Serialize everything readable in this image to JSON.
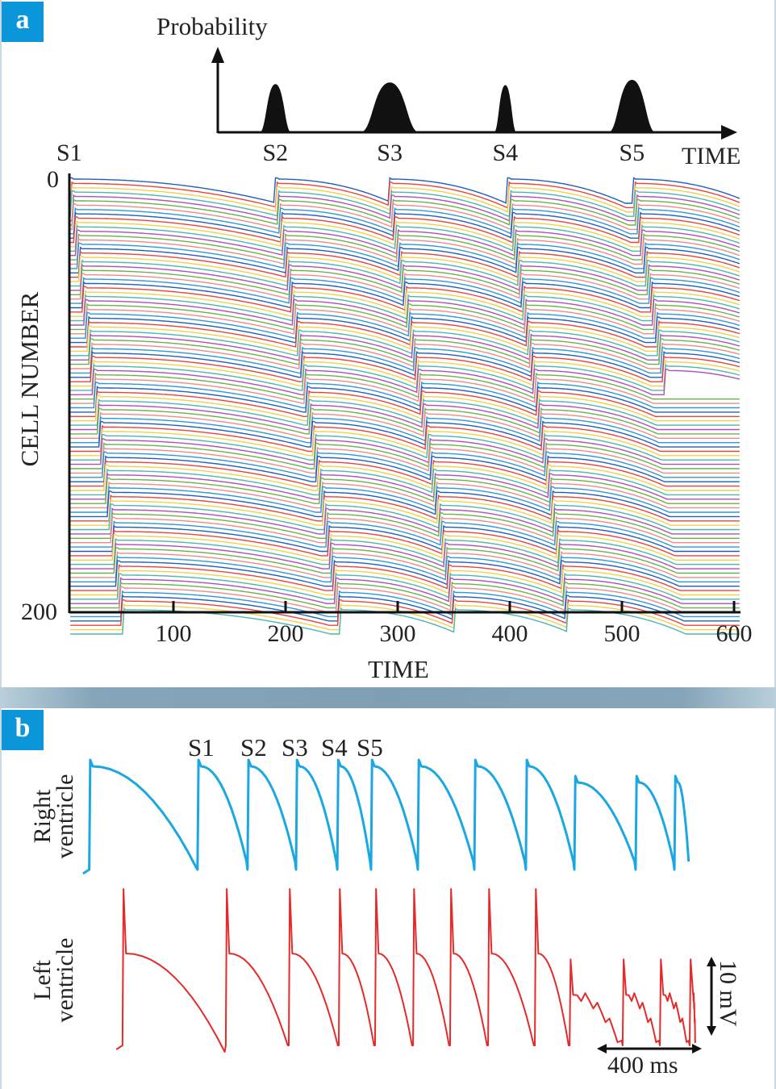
{
  "panel_a": {
    "label": "a"
  },
  "panel_b": {
    "label": "b"
  },
  "chart_data": [
    {
      "type": "line",
      "title": "Probability",
      "xlabel": "TIME",
      "ylabel": "CELL NUMBER",
      "xticks": [
        "100",
        "200",
        "300",
        "400",
        "500",
        "600"
      ],
      "yticks": [
        "0",
        "200"
      ],
      "xlim": [
        8,
        605
      ],
      "ylim": [
        0,
        200
      ],
      "stimuli": [
        {
          "name": "S1",
          "time": 8,
          "arrival_bottom": 55,
          "propagated_to_cell": 200
        },
        {
          "name": "S2",
          "time": 191,
          "arrival_bottom": 249,
          "propagated_to_cell": 200
        },
        {
          "name": "S3",
          "time": 292,
          "arrival_bottom": 351,
          "propagated_to_cell": 200
        },
        {
          "name": "S4",
          "time": 398,
          "arrival_bottom": 452,
          "propagated_to_cell": 200
        },
        {
          "name": "S5",
          "time": 510,
          "arrival_bottom": 575,
          "propagated_to_cell": 90
        }
      ],
      "probability_axis_label": "TIME",
      "probability_peaks": [
        {
          "name": "S2",
          "center": 191,
          "width": 28,
          "height": 0.92
        },
        {
          "name": "S3",
          "center": 293,
          "width": 52,
          "height": 0.95
        },
        {
          "name": "S4",
          "center": 396,
          "width": 20,
          "height": 0.9
        },
        {
          "name": "S5",
          "center": 509,
          "width": 42,
          "height": 1.0
        }
      ],
      "trace_colors": [
        "#1f5fbf",
        "#e8433f",
        "#f2d04a",
        "#4cb6b0",
        "#b04fb8",
        "#69b34a",
        "#f08a8a",
        "#2a9ad6"
      ]
    },
    {
      "type": "line",
      "stimulus_labels": [
        "S1",
        "S2",
        "S3",
        "S4",
        "S5"
      ],
      "series": [
        {
          "name": "Right ventricle",
          "color": "#1ba7e0",
          "beat_times_ms": [
            2,
            435,
            635,
            829,
            994,
            1129,
            1316,
            1542,
            1748,
            1942,
            2187,
            2342
          ],
          "end_ms": 2403
        },
        {
          "name": "Left ventricle",
          "color": "#e52a2a",
          "beat_times_ms": [
            135,
            548,
            800,
            1000,
            1145,
            1297,
            1445,
            1597,
            1784,
            1923,
            2135,
            2284,
            2403
          ],
          "end_ms": 2430
        }
      ],
      "scale_bars": {
        "time": "400 ms",
        "voltage": "10 mV"
      },
      "ylabels": [
        "Right\nventricle",
        "Left\nventricle"
      ]
    }
  ]
}
